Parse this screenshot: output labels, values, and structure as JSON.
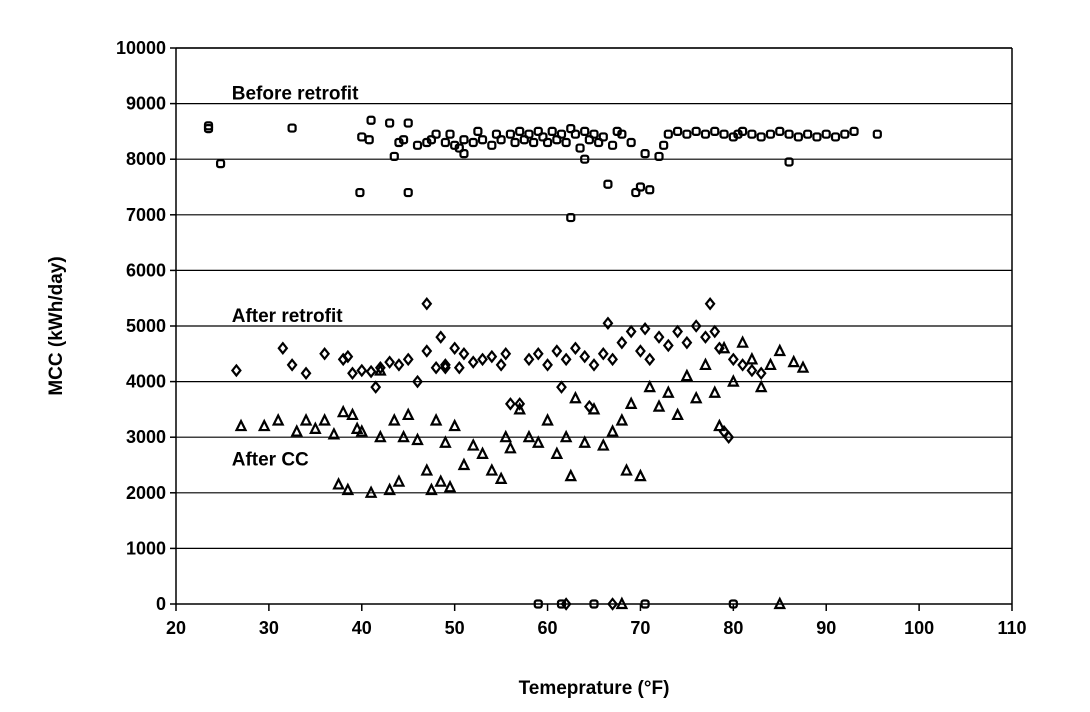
{
  "chart_data": {
    "type": "scatter",
    "title": "",
    "xlabel": "Temeprature (°F)",
    "ylabel": "MCC (kWh/day)",
    "xlim": [
      20,
      110
    ],
    "ylim": [
      0,
      10000
    ],
    "xticks": [
      "20",
      "30",
      "40",
      "50",
      "60",
      "70",
      "80",
      "90",
      "100",
      "110"
    ],
    "yticks": [
      "0",
      "1000",
      "2000",
      "3000",
      "4000",
      "5000",
      "6000",
      "7000",
      "8000",
      "9000",
      "10000"
    ],
    "grid": true,
    "annotations": [
      {
        "text": "Before retrofit",
        "x": 26,
        "y": 9200
      },
      {
        "text": "After retrofit",
        "x": 26,
        "y": 5200
      },
      {
        "text": "After CC",
        "x": 26,
        "y": 2620
      }
    ],
    "series": [
      {
        "marker": "square",
        "points": [
          [
            23.5,
            8550
          ],
          [
            23.5,
            8600
          ],
          [
            24.8,
            7920
          ],
          [
            32.5,
            8560
          ],
          [
            39.8,
            7400
          ],
          [
            40,
            8400
          ],
          [
            40.8,
            8350
          ],
          [
            41,
            8700
          ],
          [
            43,
            8650
          ],
          [
            43.5,
            8050
          ],
          [
            44,
            8300
          ],
          [
            44.5,
            8350
          ],
          [
            45,
            7400
          ],
          [
            45,
            8650
          ],
          [
            46,
            8250
          ],
          [
            47,
            8300
          ],
          [
            47.5,
            8350
          ],
          [
            48,
            8450
          ],
          [
            49,
            8300
          ],
          [
            49.5,
            8450
          ],
          [
            50,
            8250
          ],
          [
            50.5,
            8200
          ],
          [
            51,
            8350
          ],
          [
            51,
            8100
          ],
          [
            52,
            8300
          ],
          [
            52.5,
            8500
          ],
          [
            53,
            8350
          ],
          [
            54,
            8250
          ],
          [
            54.5,
            8450
          ],
          [
            55,
            8350
          ],
          [
            56,
            8450
          ],
          [
            56.5,
            8300
          ],
          [
            57,
            8500
          ],
          [
            57.5,
            8350
          ],
          [
            58,
            8450
          ],
          [
            58.5,
            8300
          ],
          [
            59,
            8500
          ],
          [
            59.5,
            8400
          ],
          [
            60,
            8300
          ],
          [
            60.5,
            8500
          ],
          [
            61,
            8350
          ],
          [
            61.5,
            8450
          ],
          [
            62,
            8300
          ],
          [
            62.5,
            6950
          ],
          [
            62.5,
            8550
          ],
          [
            63,
            8450
          ],
          [
            63.5,
            8200
          ],
          [
            64,
            8000
          ],
          [
            64,
            8500
          ],
          [
            64.5,
            8350
          ],
          [
            65,
            8450
          ],
          [
            65.5,
            8300
          ],
          [
            66,
            8400
          ],
          [
            66.5,
            7550
          ],
          [
            67,
            8250
          ],
          [
            67.5,
            8500
          ],
          [
            68,
            8450
          ],
          [
            69,
            8300
          ],
          [
            69.5,
            7400
          ],
          [
            70,
            7500
          ],
          [
            70.5,
            8100
          ],
          [
            71,
            7450
          ],
          [
            72,
            8050
          ],
          [
            72.5,
            8250
          ],
          [
            73,
            8450
          ],
          [
            74,
            8500
          ],
          [
            75,
            8450
          ],
          [
            76,
            8500
          ],
          [
            77,
            8450
          ],
          [
            78,
            8500
          ],
          [
            79,
            8450
          ],
          [
            80,
            8400
          ],
          [
            80.5,
            8450
          ],
          [
            81,
            8500
          ],
          [
            82,
            8450
          ],
          [
            83,
            8400
          ],
          [
            84,
            8450
          ],
          [
            85,
            8500
          ],
          [
            86,
            7950
          ],
          [
            86,
            8450
          ],
          [
            87,
            8400
          ],
          [
            88,
            8450
          ],
          [
            89,
            8400
          ],
          [
            90,
            8450
          ],
          [
            91,
            8400
          ],
          [
            92,
            8450
          ],
          [
            93,
            8500
          ],
          [
            95.5,
            8450
          ],
          [
            59,
            0
          ],
          [
            61.5,
            0
          ],
          [
            65,
            0
          ],
          [
            70.5,
            0
          ],
          [
            80,
            0
          ]
        ]
      },
      {
        "marker": "diamond",
        "points": [
          [
            26.5,
            4200
          ],
          [
            31.5,
            4600
          ],
          [
            32.5,
            4300
          ],
          [
            34,
            4150
          ],
          [
            36,
            4500
          ],
          [
            38,
            4400
          ],
          [
            38.5,
            4450
          ],
          [
            39,
            4150
          ],
          [
            40,
            4200
          ],
          [
            41,
            4180
          ],
          [
            42,
            4250
          ],
          [
            43,
            4350
          ],
          [
            44,
            4300
          ],
          [
            45,
            4400
          ],
          [
            46,
            4000
          ],
          [
            47,
            5400
          ],
          [
            47,
            4550
          ],
          [
            48,
            4250
          ],
          [
            48.5,
            4800
          ],
          [
            49,
            4300
          ],
          [
            50,
            4600
          ],
          [
            50.5,
            4250
          ],
          [
            51,
            4500
          ],
          [
            52,
            4350
          ],
          [
            53,
            4400
          ],
          [
            54,
            4450
          ],
          [
            55,
            4300
          ],
          [
            55.5,
            4500
          ],
          [
            56,
            3600
          ],
          [
            57,
            3600
          ],
          [
            58,
            4400
          ],
          [
            59,
            4500
          ],
          [
            60,
            4300
          ],
          [
            61,
            4550
          ],
          [
            61.5,
            3900
          ],
          [
            62,
            4400
          ],
          [
            63,
            4600
          ],
          [
            64,
            4450
          ],
          [
            64.5,
            3550
          ],
          [
            65,
            4300
          ],
          [
            66,
            4500
          ],
          [
            66.5,
            5050
          ],
          [
            67,
            4400
          ],
          [
            68,
            4700
          ],
          [
            69,
            4900
          ],
          [
            70,
            4550
          ],
          [
            70.5,
            4950
          ],
          [
            71,
            4400
          ],
          [
            72,
            4800
          ],
          [
            73,
            4650
          ],
          [
            74,
            4900
          ],
          [
            75,
            4700
          ],
          [
            76,
            5000
          ],
          [
            77,
            4800
          ],
          [
            77.5,
            5400
          ],
          [
            78,
            4900
          ],
          [
            78.5,
            4600
          ],
          [
            79,
            3100
          ],
          [
            79.5,
            3000
          ],
          [
            80,
            4400
          ],
          [
            81,
            4300
          ],
          [
            82,
            4200
          ],
          [
            83,
            4150
          ],
          [
            49,
            4250
          ],
          [
            41.5,
            3900
          ],
          [
            62,
            0
          ],
          [
            67,
            0
          ]
        ]
      },
      {
        "marker": "triangle",
        "points": [
          [
            27,
            3200
          ],
          [
            29.5,
            3200
          ],
          [
            31,
            3300
          ],
          [
            33,
            3100
          ],
          [
            34,
            3300
          ],
          [
            35,
            3150
          ],
          [
            36,
            3300
          ],
          [
            37,
            3050
          ],
          [
            37.5,
            2150
          ],
          [
            38,
            3450
          ],
          [
            38.5,
            2050
          ],
          [
            39,
            3400
          ],
          [
            39.5,
            3150
          ],
          [
            40,
            3100
          ],
          [
            41,
            2000
          ],
          [
            42,
            3000
          ],
          [
            43,
            2050
          ],
          [
            43.5,
            3300
          ],
          [
            44,
            2200
          ],
          [
            44.5,
            3000
          ],
          [
            45,
            3400
          ],
          [
            46,
            2950
          ],
          [
            47,
            2400
          ],
          [
            47.5,
            2050
          ],
          [
            48,
            3300
          ],
          [
            48.5,
            2200
          ],
          [
            49,
            2900
          ],
          [
            49.5,
            2100
          ],
          [
            50,
            3200
          ],
          [
            51,
            2500
          ],
          [
            52,
            2850
          ],
          [
            53,
            2700
          ],
          [
            54,
            2400
          ],
          [
            55,
            2250
          ],
          [
            55.5,
            3000
          ],
          [
            56,
            2800
          ],
          [
            57,
            3500
          ],
          [
            58,
            3000
          ],
          [
            59,
            2900
          ],
          [
            60,
            3300
          ],
          [
            61,
            2700
          ],
          [
            62,
            3000
          ],
          [
            62.5,
            2300
          ],
          [
            63,
            3700
          ],
          [
            64,
            2900
          ],
          [
            65,
            3500
          ],
          [
            66,
            2850
          ],
          [
            67,
            3100
          ],
          [
            68,
            3300
          ],
          [
            68.5,
            2400
          ],
          [
            69,
            3600
          ],
          [
            70,
            2300
          ],
          [
            71,
            3900
          ],
          [
            72,
            3550
          ],
          [
            73,
            3800
          ],
          [
            74,
            3400
          ],
          [
            75,
            4100
          ],
          [
            76,
            3700
          ],
          [
            77,
            4300
          ],
          [
            78,
            3800
          ],
          [
            78.5,
            3200
          ],
          [
            79,
            4600
          ],
          [
            80,
            4000
          ],
          [
            81,
            4700
          ],
          [
            82,
            4400
          ],
          [
            83,
            3900
          ],
          [
            84,
            4300
          ],
          [
            86.5,
            4350
          ],
          [
            87.5,
            4250
          ],
          [
            85,
            4550
          ],
          [
            42,
            4200
          ],
          [
            68,
            0
          ],
          [
            85,
            0
          ]
        ]
      }
    ]
  }
}
